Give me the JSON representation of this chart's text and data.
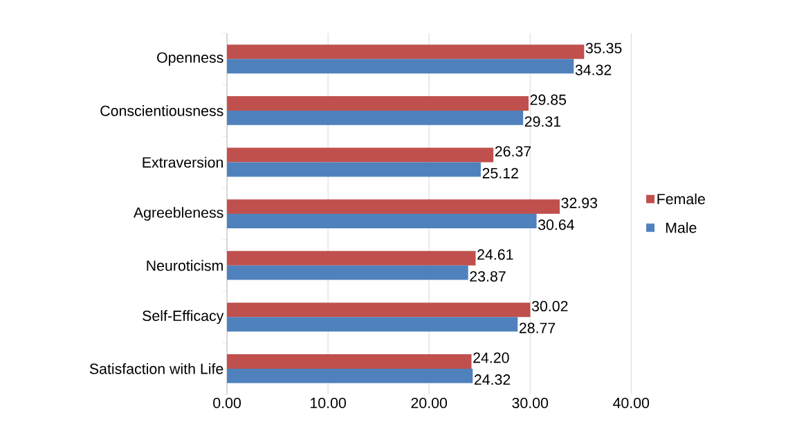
{
  "chart_data": {
    "type": "bar",
    "orientation": "horizontal",
    "categories": [
      "Openness",
      "Conscientiousness",
      "Extraversion",
      "Agreebleness",
      "Neuroticism",
      "Self-Efficacy",
      "Satisfaction with Life"
    ],
    "series": [
      {
        "name": "Female",
        "color": "#c0504d",
        "values": [
          35.35,
          29.85,
          26.37,
          32.93,
          24.61,
          30.02,
          24.2
        ],
        "value_labels": [
          "35.35",
          "29.85",
          "26.37",
          "32.93",
          "24.61",
          "30.02",
          "24.20"
        ]
      },
      {
        "name": "Male",
        "color": "#4f81bd",
        "values": [
          34.32,
          29.31,
          25.12,
          30.64,
          23.87,
          28.77,
          24.32
        ],
        "value_labels": [
          "34.32",
          "29.31",
          "25.12",
          "30.64",
          "23.87",
          "28.77",
          "24.32"
        ]
      }
    ],
    "xlim": [
      0,
      40
    ],
    "xticks": [
      {
        "value": 0,
        "label": "0.00"
      },
      {
        "value": 10,
        "label": "10.00"
      },
      {
        "value": 20,
        "label": "20.00"
      },
      {
        "value": 30,
        "label": "30.00"
      },
      {
        "value": 40,
        "label": "40.00"
      }
    ],
    "grid": "x",
    "legend": "right"
  }
}
